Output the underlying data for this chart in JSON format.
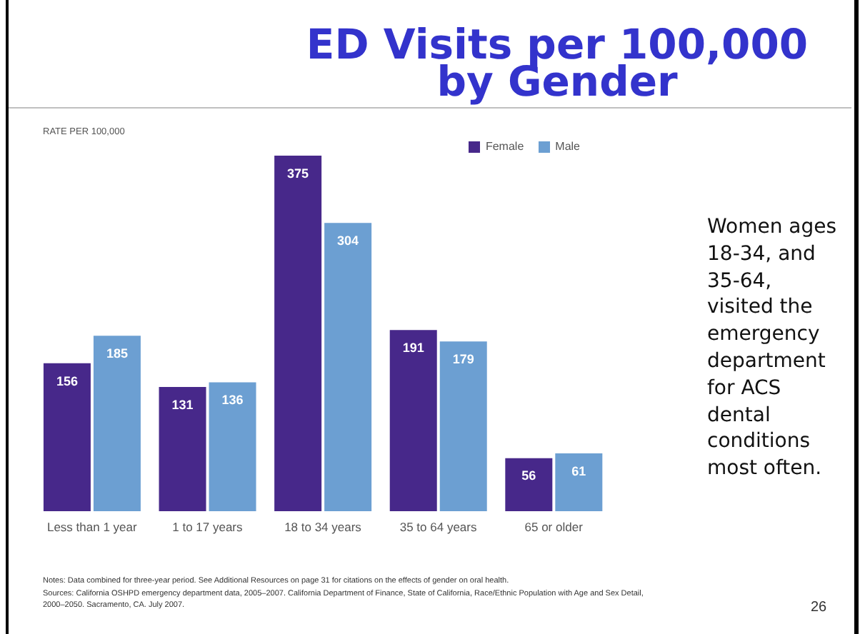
{
  "chart_data": {
    "type": "bar",
    "title": "ED Visits per 100,000 by Gender",
    "ylabel": "RATE PER 100,000",
    "categories": [
      "Less than 1 year",
      "1 to 17 years",
      "18 to 34 years",
      "35 to 64 years",
      "65 or older"
    ],
    "series": [
      {
        "name": "Female",
        "color": "#47288a",
        "values": [
          156,
          131,
          375,
          191,
          56
        ]
      },
      {
        "name": "Male",
        "color": "#6c9fd2",
        "values": [
          185,
          136,
          304,
          179,
          61
        ]
      }
    ],
    "data_labels": true,
    "legend": "top right",
    "annotations": [
      "Women ages 18-34, and 35-64, visited the emergency department for ACS dental conditions most often.",
      "Notes: Data combined for three-year period. See Additional Resources on page 31 for citations on the effects of gender on oral health.",
      "Sources: California OSHPD emergency department data, 2005–2007. California Department of Finance, State of California, Race/Ethnic Population with Age and Sex Detail, 2000–2050. Sacramento, CA. July 2007.",
      "26"
    ]
  }
}
